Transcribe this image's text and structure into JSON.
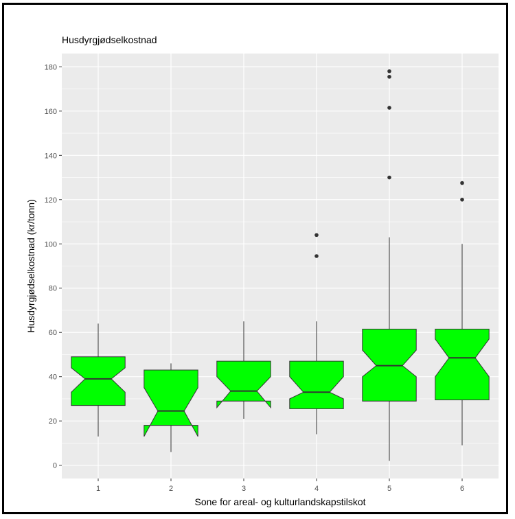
{
  "chart_data": {
    "type": "boxplot",
    "notched": true,
    "title": "Husdyrgjødselkostnad",
    "xlabel": "Sone for areal- og kulturlandskapstilskot",
    "ylabel": "Husdyrgjødselkostnad (kr/tonn)",
    "ylim": [
      -6,
      186
    ],
    "yticks": [
      0,
      20,
      40,
      60,
      80,
      100,
      120,
      140,
      160,
      180
    ],
    "categories": [
      "1",
      "2",
      "3",
      "4",
      "5",
      "6"
    ],
    "box_color": "#00ff00",
    "panel_color": "#ebebeb",
    "grid": true,
    "boxes": [
      {
        "category": "1",
        "whisker_low": 13,
        "q1": 27,
        "notch_low": 33,
        "median": 39,
        "notch_high": 44,
        "q3": 49,
        "whisker_high": 64,
        "outliers": []
      },
      {
        "category": "2",
        "whisker_low": 6,
        "q1": 18,
        "notch_low": 13,
        "median": 24.5,
        "notch_high": 35,
        "q3": 43,
        "whisker_high": 46,
        "outliers": []
      },
      {
        "category": "3",
        "whisker_low": 21,
        "q1": 29,
        "notch_low": 26,
        "median": 33.5,
        "notch_high": 40,
        "q3": 47,
        "whisker_high": 65,
        "outliers": []
      },
      {
        "category": "4",
        "whisker_low": 14,
        "q1": 25.5,
        "notch_low": 30,
        "median": 33,
        "notch_high": 40,
        "q3": 47,
        "whisker_high": 65,
        "outliers": [
          94.5,
          104
        ]
      },
      {
        "category": "5",
        "whisker_low": 2,
        "q1": 29,
        "notch_low": 40,
        "median": 45,
        "notch_high": 52,
        "q3": 61.5,
        "whisker_high": 103,
        "outliers": [
          130,
          161.5,
          175.5,
          178
        ]
      },
      {
        "category": "6",
        "whisker_low": 9,
        "q1": 29.5,
        "notch_low": 40,
        "median": 48.5,
        "notch_high": 57,
        "q3": 61.5,
        "whisker_high": 100,
        "outliers": [
          120,
          127.5
        ]
      }
    ]
  }
}
